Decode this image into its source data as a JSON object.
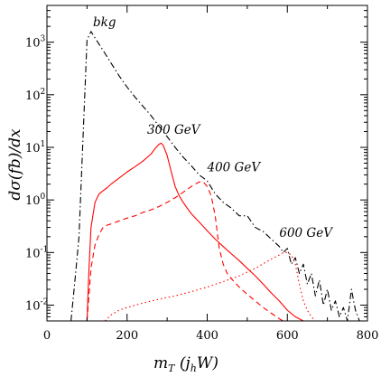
{
  "chart_data": {
    "type": "line",
    "title": "",
    "xlabel": "m_T (j_h W)",
    "ylabel": "dσ(fb)/dx",
    "xlabel_parts": {
      "main": "m",
      "sub": "T",
      "rest": " (j",
      "sub2": "h",
      "rest2": "W)"
    },
    "ylabel_text": "dσ(fb)/dx",
    "xlim": [
      0,
      800
    ],
    "ylim": [
      0.005,
      5000
    ],
    "yscale": "log",
    "grid": false,
    "x_ticks": [
      0,
      200,
      400,
      600,
      800
    ],
    "y_ticks": [
      {
        "value": 0.01,
        "base": "10",
        "exp": "-2"
      },
      {
        "value": 0.1,
        "base": "10",
        "exp": "-1"
      },
      {
        "value": 1,
        "base": "10",
        "exp": "0"
      },
      {
        "value": 10,
        "base": "10",
        "exp": "1"
      },
      {
        "value": 100,
        "base": "10",
        "exp": "2"
      },
      {
        "value": 1000,
        "base": "10",
        "exp": "3"
      }
    ],
    "series": [
      {
        "name": "bkg",
        "color": "#000000",
        "dash": "dashdot",
        "label_at": [
          115,
          2000
        ],
        "x": [
          60,
          70,
          80,
          90,
          100,
          110,
          120,
          140,
          160,
          180,
          200,
          220,
          240,
          260,
          280,
          300,
          320,
          340,
          360,
          380,
          400,
          420,
          440,
          460,
          480,
          500,
          520,
          540,
          560,
          580,
          590,
          600,
          610,
          620,
          630,
          640,
          650,
          660,
          670,
          680,
          690,
          700,
          710,
          720,
          730,
          740,
          750,
          760,
          770,
          780
        ],
        "y": [
          0.005,
          0.03,
          0.2,
          15,
          1100,
          1600,
          1200,
          700,
          400,
          230,
          140,
          90,
          60,
          40,
          25,
          16,
          10,
          6.5,
          4.5,
          3.0,
          2.3,
          1.3,
          0.9,
          0.7,
          0.5,
          0.5,
          0.3,
          0.25,
          0.18,
          0.13,
          0.1,
          0.12,
          0.06,
          0.08,
          0.04,
          0.06,
          0.025,
          0.04,
          0.015,
          0.03,
          0.01,
          0.02,
          0.008,
          0.012,
          0.006,
          0.009,
          0.005,
          0.02,
          0.008,
          0.005
        ]
      },
      {
        "name": "300 GeV",
        "color": "#ff0000",
        "dash": "solid",
        "label_at": [
          250,
          18
        ],
        "x": [
          100,
          105,
          110,
          120,
          130,
          140,
          150,
          160,
          180,
          200,
          220,
          240,
          260,
          270,
          280,
          285,
          290,
          300,
          310,
          320,
          330,
          340,
          350,
          360,
          380,
          400,
          420,
          440,
          460,
          480,
          500,
          520,
          540,
          560,
          580,
          600,
          620,
          640,
          660
        ],
        "y": [
          0.005,
          0.05,
          0.3,
          0.9,
          1.3,
          1.5,
          1.7,
          2.0,
          2.6,
          3.4,
          4.3,
          5.5,
          7.5,
          9.5,
          11.5,
          12,
          11,
          7,
          3.5,
          1.8,
          1.2,
          0.9,
          0.7,
          0.55,
          0.38,
          0.26,
          0.18,
          0.13,
          0.095,
          0.07,
          0.05,
          0.036,
          0.025,
          0.017,
          0.012,
          0.008,
          0.006,
          0.005,
          0.004
        ]
      },
      {
        "name": "400 GeV",
        "color": "#ff0000",
        "dash": "dashed",
        "label_at": [
          400,
          3.5
        ],
        "x": [
          100,
          110,
          120,
          130,
          140,
          150,
          160,
          180,
          200,
          220,
          240,
          260,
          280,
          300,
          320,
          340,
          360,
          370,
          380,
          390,
          400,
          410,
          420,
          430,
          440,
          450,
          460,
          480,
          500,
          520,
          540,
          560,
          580,
          600,
          620,
          640,
          660
        ],
        "y": [
          0.005,
          0.05,
          0.14,
          0.22,
          0.3,
          0.33,
          0.35,
          0.4,
          0.45,
          0.5,
          0.58,
          0.65,
          0.75,
          0.9,
          1.1,
          1.4,
          1.8,
          2.0,
          2.2,
          2.2,
          1.8,
          1.2,
          0.5,
          0.12,
          0.06,
          0.04,
          0.032,
          0.022,
          0.016,
          0.012,
          0.009,
          0.007,
          0.0055,
          0.0045,
          0.004,
          0.004,
          0.004
        ]
      },
      {
        "name": "600 GeV",
        "color": "#ff0000",
        "dash": "dotted",
        "label_at": [
          580,
          0.2
        ],
        "x": [
          145,
          160,
          180,
          200,
          240,
          280,
          320,
          360,
          400,
          440,
          480,
          520,
          560,
          580,
          590,
          600,
          610,
          620,
          630,
          640,
          650,
          660,
          670
        ],
        "y": [
          0.005,
          0.0065,
          0.008,
          0.009,
          0.011,
          0.013,
          0.015,
          0.018,
          0.022,
          0.028,
          0.036,
          0.05,
          0.075,
          0.09,
          0.1,
          0.1,
          0.09,
          0.06,
          0.025,
          0.012,
          0.008,
          0.006,
          0.005
        ]
      }
    ]
  }
}
